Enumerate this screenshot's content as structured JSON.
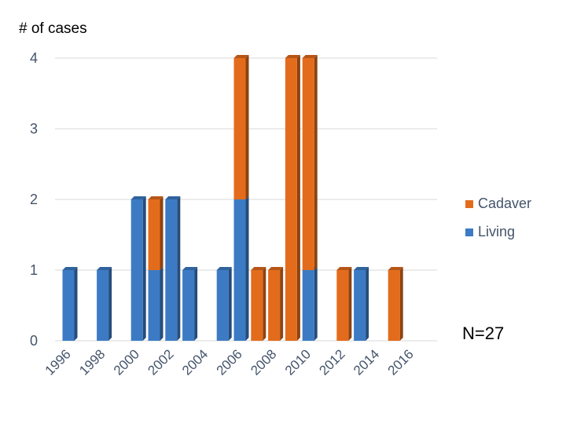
{
  "chart_data": {
    "type": "bar",
    "stacked": true,
    "ylabel": "# of cases",
    "ylim": [
      0,
      4
    ],
    "yticks": [
      0,
      1,
      2,
      3,
      4
    ],
    "grid": true,
    "legend_position": "right",
    "categories": [
      "1996",
      "1997",
      "1998",
      "1999",
      "2000",
      "2001",
      "2002",
      "2003",
      "2004",
      "2005",
      "2006",
      "2007",
      "2008",
      "2009",
      "2010",
      "2011",
      "2012",
      "2013",
      "2014",
      "2015",
      "2016"
    ],
    "xtick_labels": [
      "1996",
      "1998",
      "2000",
      "2002",
      "2004",
      "2006",
      "2008",
      "2010",
      "2012",
      "2014",
      "2016"
    ],
    "series": [
      {
        "name": "Living",
        "color": "#3c7bc4",
        "values": [
          1,
          0,
          1,
          0,
          2,
          1,
          2,
          1,
          0,
          1,
          2,
          0,
          0,
          0,
          1,
          0,
          0,
          1,
          0,
          0,
          0
        ]
      },
      {
        "name": "Cadaver",
        "color": "#e36c1c",
        "values": [
          0,
          0,
          0,
          0,
          0,
          1,
          0,
          0,
          0,
          0,
          2,
          1,
          1,
          4,
          3,
          0,
          1,
          0,
          0,
          1,
          0
        ]
      }
    ],
    "legend": [
      "Cadaver",
      "Living"
    ],
    "annotation": "N=27"
  }
}
